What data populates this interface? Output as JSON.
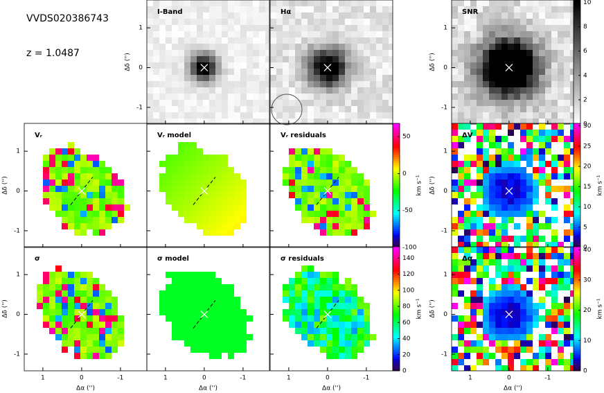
{
  "object": "VVDS020386743",
  "redshift": "z = 1.0487",
  "axes": {
    "xlim": [
      1.48,
      -1.68
    ],
    "ylim": [
      -1.42,
      1.7
    ],
    "xticks": [
      1,
      0,
      -1
    ],
    "yticks": [
      -1,
      0,
      1
    ],
    "xlabel": "Δα ('')",
    "ylabel": "Δδ ('')"
  },
  "panels": [
    {
      "label": "I-Band"
    },
    {
      "label": "Hα"
    },
    {
      "label": "SNR"
    },
    {
      "label": "Vᵣ"
    },
    {
      "label": "Vᵣ model"
    },
    {
      "label": "Vᵣ residuals"
    },
    {
      "label": "ΔV"
    },
    {
      "label": "σ"
    },
    {
      "label": "σ model"
    },
    {
      "label": "σ residuals"
    },
    {
      "label": "Δσ"
    }
  ],
  "colorbars": [
    {
      "colormap": "rainbow",
      "lim": [
        -100,
        68
      ],
      "ticks": [
        -100,
        -50,
        0,
        50
      ],
      "label": "km s⁻¹"
    },
    {
      "colormap": "rainbow",
      "lim": [
        0,
        154
      ],
      "ticks": [
        0,
        20,
        40,
        60,
        80,
        100,
        120,
        140
      ],
      "label": "km s⁻¹"
    },
    {
      "colormap": "gray",
      "lim": [
        0,
        10.2
      ],
      "ticks": [
        0,
        2,
        4,
        6,
        8,
        10
      ]
    },
    {
      "colormap": "rainbow",
      "lim": [
        0,
        30.6
      ],
      "ticks": [
        0,
        5,
        10,
        15,
        20,
        25,
        30
      ],
      "label": "km s⁻¹"
    },
    {
      "colormap": "rainbow",
      "lim": [
        0,
        41
      ],
      "ticks": [
        0,
        10,
        20,
        30,
        40
      ],
      "label": "km s⁻¹"
    }
  ]
}
